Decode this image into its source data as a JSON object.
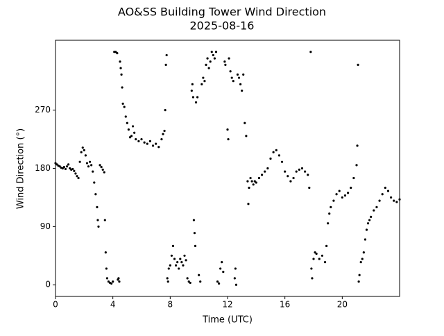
{
  "chart_data": {
    "type": "scatter",
    "title": "AO&SS Building Tower Wind Direction",
    "subtitle": "2025-08-16",
    "x_label": "Time (UTC)",
    "y_label": "Wind Direction (°)",
    "color": "#000000",
    "xlim": [
      0,
      24
    ],
    "xticks": [
      0,
      4,
      8,
      12,
      16,
      20
    ],
    "ylim": [
      -18,
      378
    ],
    "yticks": [
      0,
      90,
      180,
      270
    ],
    "x": [
      0,
      0.1,
      0.2,
      0.3,
      0.4,
      0.5,
      0.6,
      0.7,
      0.8,
      0.9,
      1.0,
      1.1,
      1.2,
      1.3,
      1.4,
      1.5,
      1.6,
      1.7,
      1.8,
      1.9,
      2.0,
      2.1,
      2.2,
      2.3,
      2.4,
      2.5,
      2.6,
      2.7,
      2.8,
      2.9,
      2.95,
      3.0,
      3.1,
      3.2,
      3.3,
      3.4,
      3.45,
      3.5,
      3.55,
      3.6,
      3.7,
      3.8,
      3.9,
      4.0,
      4.1,
      4.2,
      4.3,
      4.35,
      4.4,
      4.45,
      4.5,
      4.55,
      4.6,
      4.65,
      4.7,
      4.8,
      4.9,
      5.0,
      5.1,
      5.2,
      5.3,
      5.4,
      5.5,
      5.6,
      5.8,
      6.0,
      6.2,
      6.4,
      6.6,
      6.8,
      7.0,
      7.2,
      7.4,
      7.5,
      7.6,
      7.65,
      7.7,
      7.75,
      7.8,
      7.85,
      7.9,
      8.0,
      8.1,
      8.2,
      8.3,
      8.4,
      8.5,
      8.6,
      8.7,
      8.8,
      8.9,
      9.0,
      9.1,
      9.2,
      9.3,
      9.4,
      9.5,
      9.55,
      9.6,
      9.65,
      9.7,
      9.75,
      9.8,
      9.9,
      10.0,
      10.1,
      10.2,
      10.3,
      10.4,
      10.5,
      10.6,
      10.7,
      10.8,
      10.9,
      11.0,
      11.1,
      11.2,
      11.3,
      11.4,
      11.5,
      11.6,
      11.7,
      11.8,
      11.85,
      12.0,
      12.05,
      12.1,
      12.2,
      12.3,
      12.4,
      12.5,
      12.55,
      12.6,
      12.7,
      12.8,
      12.9,
      13.0,
      13.1,
      13.2,
      13.3,
      13.4,
      13.45,
      13.5,
      13.6,
      13.7,
      13.8,
      13.9,
      14.0,
      14.2,
      14.4,
      14.6,
      14.8,
      15.0,
      15.2,
      15.4,
      15.6,
      15.8,
      16.0,
      16.2,
      16.4,
      16.6,
      16.8,
      17.0,
      17.2,
      17.4,
      17.6,
      17.7,
      17.8,
      17.85,
      17.9,
      18.0,
      18.1,
      18.2,
      18.4,
      18.6,
      18.8,
      18.9,
      19.0,
      19.1,
      19.2,
      19.4,
      19.6,
      19.8,
      20.0,
      20.2,
      20.4,
      20.6,
      20.8,
      21.0,
      21.05,
      21.1,
      21.15,
      21.2,
      21.3,
      21.4,
      21.5,
      21.6,
      21.7,
      21.8,
      21.9,
      22.0,
      22.2,
      22.4,
      22.6,
      22.8,
      23.0,
      23.2,
      23.4,
      23.6,
      23.8,
      24.0
    ],
    "values": [
      188,
      186,
      184,
      183,
      181,
      180,
      182,
      179,
      183,
      186,
      180,
      178,
      179,
      176,
      172,
      168,
      165,
      190,
      205,
      212,
      208,
      200,
      188,
      183,
      190,
      185,
      175,
      158,
      140,
      120,
      100,
      90,
      185,
      182,
      178,
      174,
      100,
      50,
      25,
      10,
      5,
      3,
      2,
      5,
      360,
      360,
      358,
      8,
      10,
      5,
      345,
      335,
      325,
      305,
      280,
      275,
      260,
      250,
      240,
      228,
      230,
      245,
      235,
      225,
      222,
      225,
      220,
      218,
      222,
      215,
      218,
      213,
      225,
      233,
      238,
      270,
      340,
      355,
      10,
      5,
      25,
      30,
      45,
      60,
      40,
      30,
      35,
      25,
      40,
      35,
      30,
      45,
      38,
      10,
      5,
      3,
      300,
      310,
      290,
      100,
      80,
      60,
      282,
      290,
      15,
      5,
      310,
      320,
      315,
      340,
      350,
      335,
      345,
      360,
      355,
      350,
      360,
      5,
      2,
      25,
      35,
      20,
      345,
      340,
      240,
      225,
      350,
      330,
      320,
      315,
      10,
      25,
      0,
      325,
      320,
      310,
      300,
      325,
      250,
      230,
      160,
      125,
      150,
      165,
      160,
      155,
      160,
      158,
      165,
      170,
      175,
      180,
      195,
      205,
      208,
      200,
      190,
      175,
      168,
      160,
      165,
      175,
      178,
      180,
      175,
      170,
      150,
      360,
      25,
      10,
      40,
      50,
      48,
      40,
      45,
      35,
      60,
      95,
      110,
      120,
      130,
      140,
      145,
      135,
      138,
      142,
      150,
      165,
      185,
      215,
      340,
      5,
      15,
      35,
      40,
      50,
      70,
      85,
      95,
      100,
      105,
      115,
      120,
      130,
      140,
      150,
      145,
      135,
      130,
      128,
      132
    ]
  }
}
